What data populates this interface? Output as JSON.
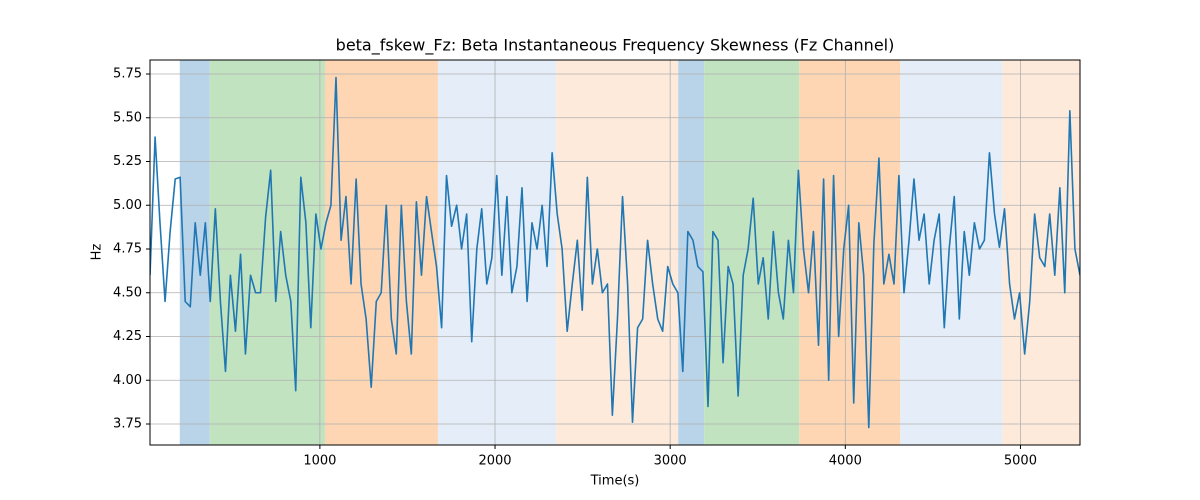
{
  "chart_data": {
    "type": "line",
    "title": "beta_fskew_Fz: Beta Instantaneous Frequency Skewness (Fz Channel)",
    "x_label": "Time(s)",
    "y_label": "Hz",
    "xlim": [
      30,
      5340
    ],
    "ylim": [
      3.63,
      5.83
    ],
    "xticks": [
      1000,
      2000,
      3000,
      4000,
      5000
    ],
    "yticks": [
      3.75,
      {
        "value": 4.0,
        "label": "4.00"
      },
      4.25,
      {
        "value": 4.5,
        "label": "4.50"
      },
      4.75,
      {
        "value": 5.0,
        "label": "5.00"
      },
      5.25,
      {
        "value": 5.5,
        "label": "5.50"
      },
      5.75
    ],
    "grid": true,
    "spans": [
      {
        "start": 200,
        "end": 371,
        "color": "#b9d3e8"
      },
      {
        "start": 371,
        "end": 1029,
        "color": "#c1e3c0"
      },
      {
        "start": 1029,
        "end": 1674,
        "color": "#fed6b3"
      },
      {
        "start": 1674,
        "end": 2349,
        "color": "#e5eef8"
      },
      {
        "start": 2349,
        "end": 3046,
        "color": "#feeada"
      },
      {
        "start": 3046,
        "end": 3194,
        "color": "#b9d3e8"
      },
      {
        "start": 3194,
        "end": 3737,
        "color": "#c1e3c0"
      },
      {
        "start": 3737,
        "end": 4314,
        "color": "#fed6b3"
      },
      {
        "start": 4314,
        "end": 4897,
        "color": "#e5eef8"
      },
      {
        "start": 4897,
        "end": 5340,
        "color": "#feeada"
      }
    ],
    "x": [
      30,
      59,
      87,
      116,
      145,
      174,
      202,
      231,
      260,
      288,
      317,
      346,
      374,
      403,
      432,
      461,
      489,
      518,
      547,
      575,
      604,
      633,
      661,
      690,
      719,
      748,
      776,
      805,
      834,
      862,
      891,
      920,
      948,
      977,
      1006,
      1035,
      1063,
      1092,
      1121,
      1149,
      1178,
      1207,
      1235,
      1264,
      1293,
      1322,
      1350,
      1379,
      1408,
      1436,
      1465,
      1494,
      1522,
      1551,
      1580,
      1609,
      1637,
      1666,
      1695,
      1723,
      1752,
      1781,
      1809,
      1838,
      1867,
      1896,
      1924,
      1953,
      1982,
      2010,
      2039,
      2068,
      2096,
      2125,
      2154,
      2183,
      2211,
      2240,
      2269,
      2297,
      2326,
      2355,
      2383,
      2412,
      2441,
      2470,
      2498,
      2527,
      2556,
      2584,
      2613,
      2642,
      2670,
      2699,
      2728,
      2757,
      2785,
      2814,
      2843,
      2871,
      2900,
      2929,
      2957,
      2986,
      3015,
      3044,
      3072,
      3101,
      3130,
      3158,
      3187,
      3216,
      3244,
      3273,
      3302,
      3331,
      3359,
      3388,
      3417,
      3445,
      3474,
      3503,
      3531,
      3560,
      3589,
      3618,
      3646,
      3675,
      3704,
      3732,
      3761,
      3790,
      3818,
      3847,
      3876,
      3905,
      3933,
      3962,
      3991,
      4019,
      4048,
      4077,
      4105,
      4134,
      4163,
      4192,
      4220,
      4249,
      4278,
      4306,
      4335,
      4364,
      4392,
      4421,
      4450,
      4479,
      4507,
      4536,
      4565,
      4593,
      4622,
      4651,
      4679,
      4708,
      4737,
      4766,
      4794,
      4823,
      4852,
      4880,
      4909,
      4938,
      4966,
      4995,
      5024,
      5053,
      5081,
      5110,
      5139,
      5167,
      5196,
      5225,
      5253,
      5282,
      5311,
      5340
    ],
    "series": [
      {
        "color": "#1f77b4",
        "values": [
          4.6,
          5.39,
          4.9,
          4.45,
          4.85,
          5.15,
          5.16,
          4.45,
          4.42,
          4.9,
          4.6,
          4.9,
          4.45,
          4.98,
          4.45,
          4.05,
          4.6,
          4.28,
          4.72,
          4.15,
          4.6,
          4.5,
          4.5,
          4.93,
          5.2,
          4.45,
          4.85,
          4.6,
          4.45,
          3.94,
          5.16,
          4.9,
          4.3,
          4.95,
          4.75,
          4.9,
          5.0,
          5.73,
          4.8,
          5.05,
          4.55,
          5.15,
          4.55,
          4.35,
          3.96,
          4.45,
          4.5,
          5.0,
          4.35,
          4.15,
          5.0,
          4.45,
          4.15,
          5.02,
          4.6,
          5.05,
          4.85,
          4.65,
          4.3,
          5.17,
          4.88,
          5.0,
          4.75,
          4.95,
          4.22,
          4.75,
          4.98,
          4.55,
          4.7,
          5.17,
          4.6,
          5.05,
          4.5,
          4.65,
          5.1,
          4.45,
          4.9,
          4.75,
          5.0,
          4.65,
          5.3,
          4.95,
          4.75,
          4.28,
          4.55,
          4.8,
          4.4,
          5.16,
          4.55,
          4.75,
          4.5,
          4.55,
          3.8,
          4.35,
          5.05,
          4.55,
          3.76,
          4.3,
          4.35,
          4.8,
          4.55,
          4.35,
          4.28,
          4.65,
          4.55,
          4.5,
          4.05,
          4.85,
          4.8,
          4.65,
          4.62,
          3.85,
          4.85,
          4.8,
          4.1,
          4.65,
          4.55,
          3.91,
          4.6,
          4.75,
          5.04,
          4.55,
          4.7,
          4.35,
          4.85,
          4.5,
          4.35,
          4.8,
          4.5,
          5.2,
          4.75,
          4.5,
          4.85,
          4.2,
          5.15,
          4.0,
          5.17,
          4.25,
          4.75,
          5.0,
          3.87,
          4.9,
          4.6,
          3.73,
          4.78,
          5.27,
          4.55,
          4.72,
          4.55,
          5.17,
          4.5,
          4.8,
          5.15,
          4.8,
          4.95,
          4.55,
          4.8,
          4.95,
          4.3,
          4.75,
          5.05,
          4.35,
          4.85,
          4.6,
          4.9,
          4.75,
          4.8,
          5.3,
          4.95,
          4.76,
          4.98,
          4.55,
          4.35,
          4.5,
          4.15,
          4.45,
          4.95,
          4.7,
          4.65,
          4.95,
          4.6,
          5.1,
          4.5,
          5.54,
          4.75,
          4.6
        ]
      }
    ]
  }
}
